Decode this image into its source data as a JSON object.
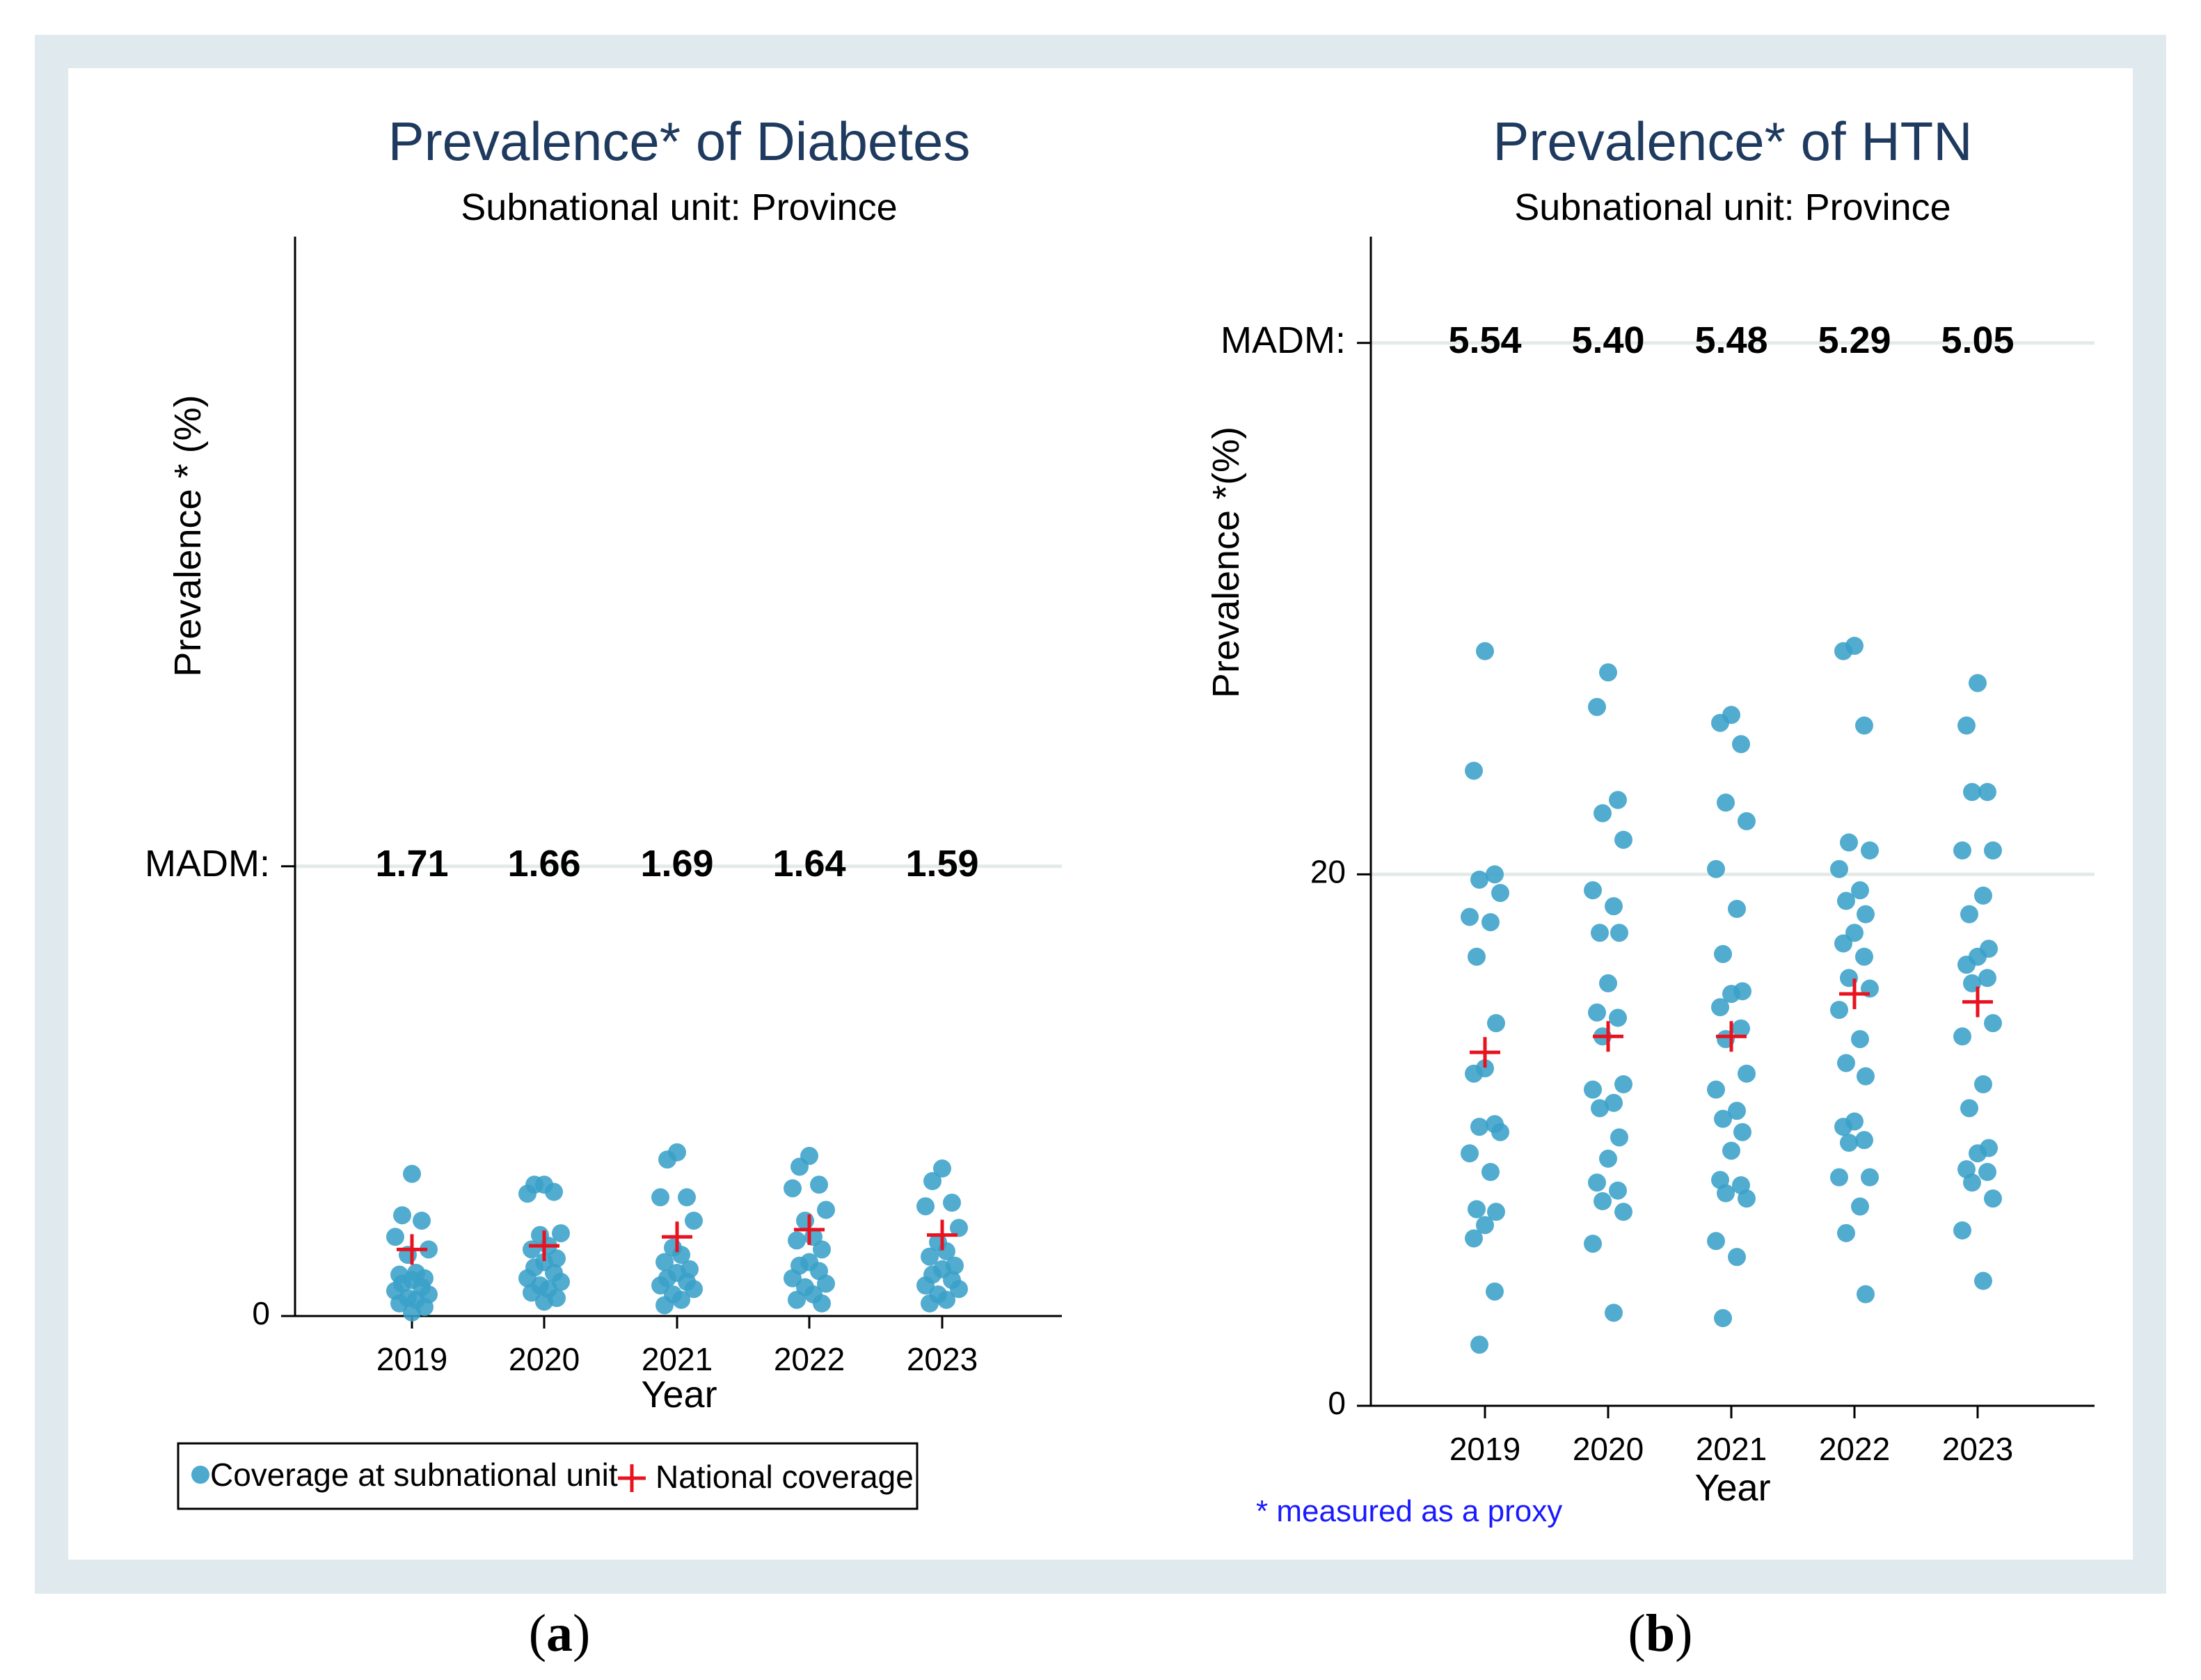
{
  "chart_data": [
    {
      "type": "scatter",
      "panel_label": "a",
      "title": "Prevalence* of Diabetes",
      "subtitle": "Subnational unit: Province",
      "xlabel": "Year",
      "ylabel": "Prevalence * (%)",
      "categories": [
        "2019",
        "2020",
        "2021",
        "2022",
        "2023"
      ],
      "ylim": [
        0,
        60
      ],
      "yticks": [
        {
          "value": 0,
          "label": "0"
        }
      ],
      "madm_label": "MADM:",
      "madm_level": 25,
      "madm": [
        "1.71",
        "1.66",
        "1.69",
        "1.64",
        "1.59"
      ],
      "series": [
        {
          "name": "Coverage at subnational unit",
          "marker": "circle",
          "color": "#3aa0c8",
          "values": [
            [
              7.9,
              5.6,
              5.3,
              4.4,
              3.7,
              3.4,
              2.4,
              2.3,
              2.1,
              2.0,
              1.8,
              1.6,
              1.4,
              1.2,
              1.0,
              0.9,
              0.7,
              0.5,
              0.2
            ],
            [
              7.3,
              7.3,
              6.9,
              6.8,
              4.6,
              4.5,
              3.9,
              3.7,
              3.2,
              3.0,
              2.7,
              2.4,
              2.1,
              1.9,
              1.7,
              1.5,
              1.3,
              1.0,
              0.8
            ],
            [
              9.1,
              8.7,
              6.6,
              6.6,
              5.3,
              3.8,
              3.4,
              3.0,
              2.6,
              2.4,
              2.1,
              1.9,
              1.7,
              1.5,
              1.2,
              0.9,
              0.6
            ],
            [
              8.9,
              8.3,
              7.3,
              7.1,
              5.9,
              5.3,
              4.4,
              4.2,
              3.7,
              3.0,
              2.8,
              2.5,
              2.1,
              1.8,
              1.6,
              1.2,
              0.9,
              0.7
            ],
            [
              8.2,
              7.5,
              6.3,
              6.1,
              4.9,
              4.1,
              3.6,
              3.3,
              2.8,
              2.6,
              2.3,
              2.0,
              1.7,
              1.5,
              1.2,
              0.9,
              0.7
            ]
          ]
        },
        {
          "name": "National coverage",
          "marker": "plus",
          "color": "#e8131f",
          "values": [
            3.7,
            3.9,
            4.4,
            4.8,
            4.5
          ]
        }
      ],
      "legend_position": "bottom-left",
      "legend": [
        {
          "label": "Coverage at subnational unit",
          "marker": "circle"
        },
        {
          "label": "National coverage",
          "marker": "plus"
        }
      ]
    },
    {
      "type": "scatter",
      "panel_label": "b",
      "title": "Prevalence* of HTN",
      "subtitle": "Subnational unit: Province",
      "xlabel": "Year",
      "ylabel": "Prevalence *(%)",
      "categories": [
        "2019",
        "2020",
        "2021",
        "2022",
        "2023"
      ],
      "ylim": [
        0,
        44
      ],
      "yticks": [
        {
          "value": 0,
          "label": "0"
        },
        {
          "value": 20,
          "label": "20"
        }
      ],
      "madm_label": "MADM:",
      "madm_level": 40,
      "madm": [
        "5.54",
        "5.40",
        "5.48",
        "5.29",
        "5.05"
      ],
      "note": "* measured as a proxy",
      "series": [
        {
          "name": "Coverage at subnational unit",
          "marker": "circle",
          "color": "#3aa0c8",
          "values": [
            [
              28.4,
              23.9,
              20.0,
              19.8,
              19.3,
              18.4,
              18.2,
              16.9,
              14.4,
              12.7,
              12.5,
              10.6,
              10.5,
              10.3,
              9.5,
              8.8,
              7.4,
              7.3,
              6.8,
              6.3,
              4.3,
              2.3
            ],
            [
              27.6,
              26.3,
              22.8,
              22.3,
              21.3,
              19.4,
              18.8,
              17.8,
              17.8,
              15.9,
              14.8,
              14.6,
              13.9,
              12.1,
              11.9,
              11.4,
              11.2,
              10.1,
              9.3,
              8.4,
              8.1,
              7.7,
              7.3,
              6.1,
              3.5
            ],
            [
              26.0,
              25.7,
              24.9,
              22.7,
              22.0,
              20.2,
              18.7,
              17.0,
              15.6,
              15.5,
              15.0,
              14.2,
              13.8,
              12.5,
              11.9,
              11.1,
              10.8,
              10.3,
              9.6,
              8.5,
              8.3,
              8.0,
              7.8,
              6.2,
              5.6,
              3.3
            ],
            [
              28.6,
              28.4,
              25.6,
              21.2,
              20.9,
              20.2,
              19.4,
              19.0,
              18.5,
              17.8,
              17.4,
              16.9,
              16.1,
              15.7,
              14.9,
              13.8,
              12.9,
              12.4,
              10.7,
              10.5,
              10.0,
              9.9,
              8.6,
              8.6,
              7.5,
              6.5,
              4.2
            ],
            [
              27.2,
              25.6,
              23.1,
              23.1,
              20.9,
              20.9,
              19.2,
              18.5,
              17.2,
              16.9,
              16.6,
              16.1,
              15.9,
              14.4,
              13.9,
              12.1,
              11.2,
              9.7,
              9.5,
              8.9,
              8.8,
              8.4,
              7.8,
              6.6,
              4.7
            ]
          ]
        },
        {
          "name": "National coverage",
          "marker": "plus",
          "color": "#e8131f",
          "values": [
            13.3,
            13.9,
            13.9,
            15.5,
            15.2
          ]
        }
      ]
    }
  ]
}
